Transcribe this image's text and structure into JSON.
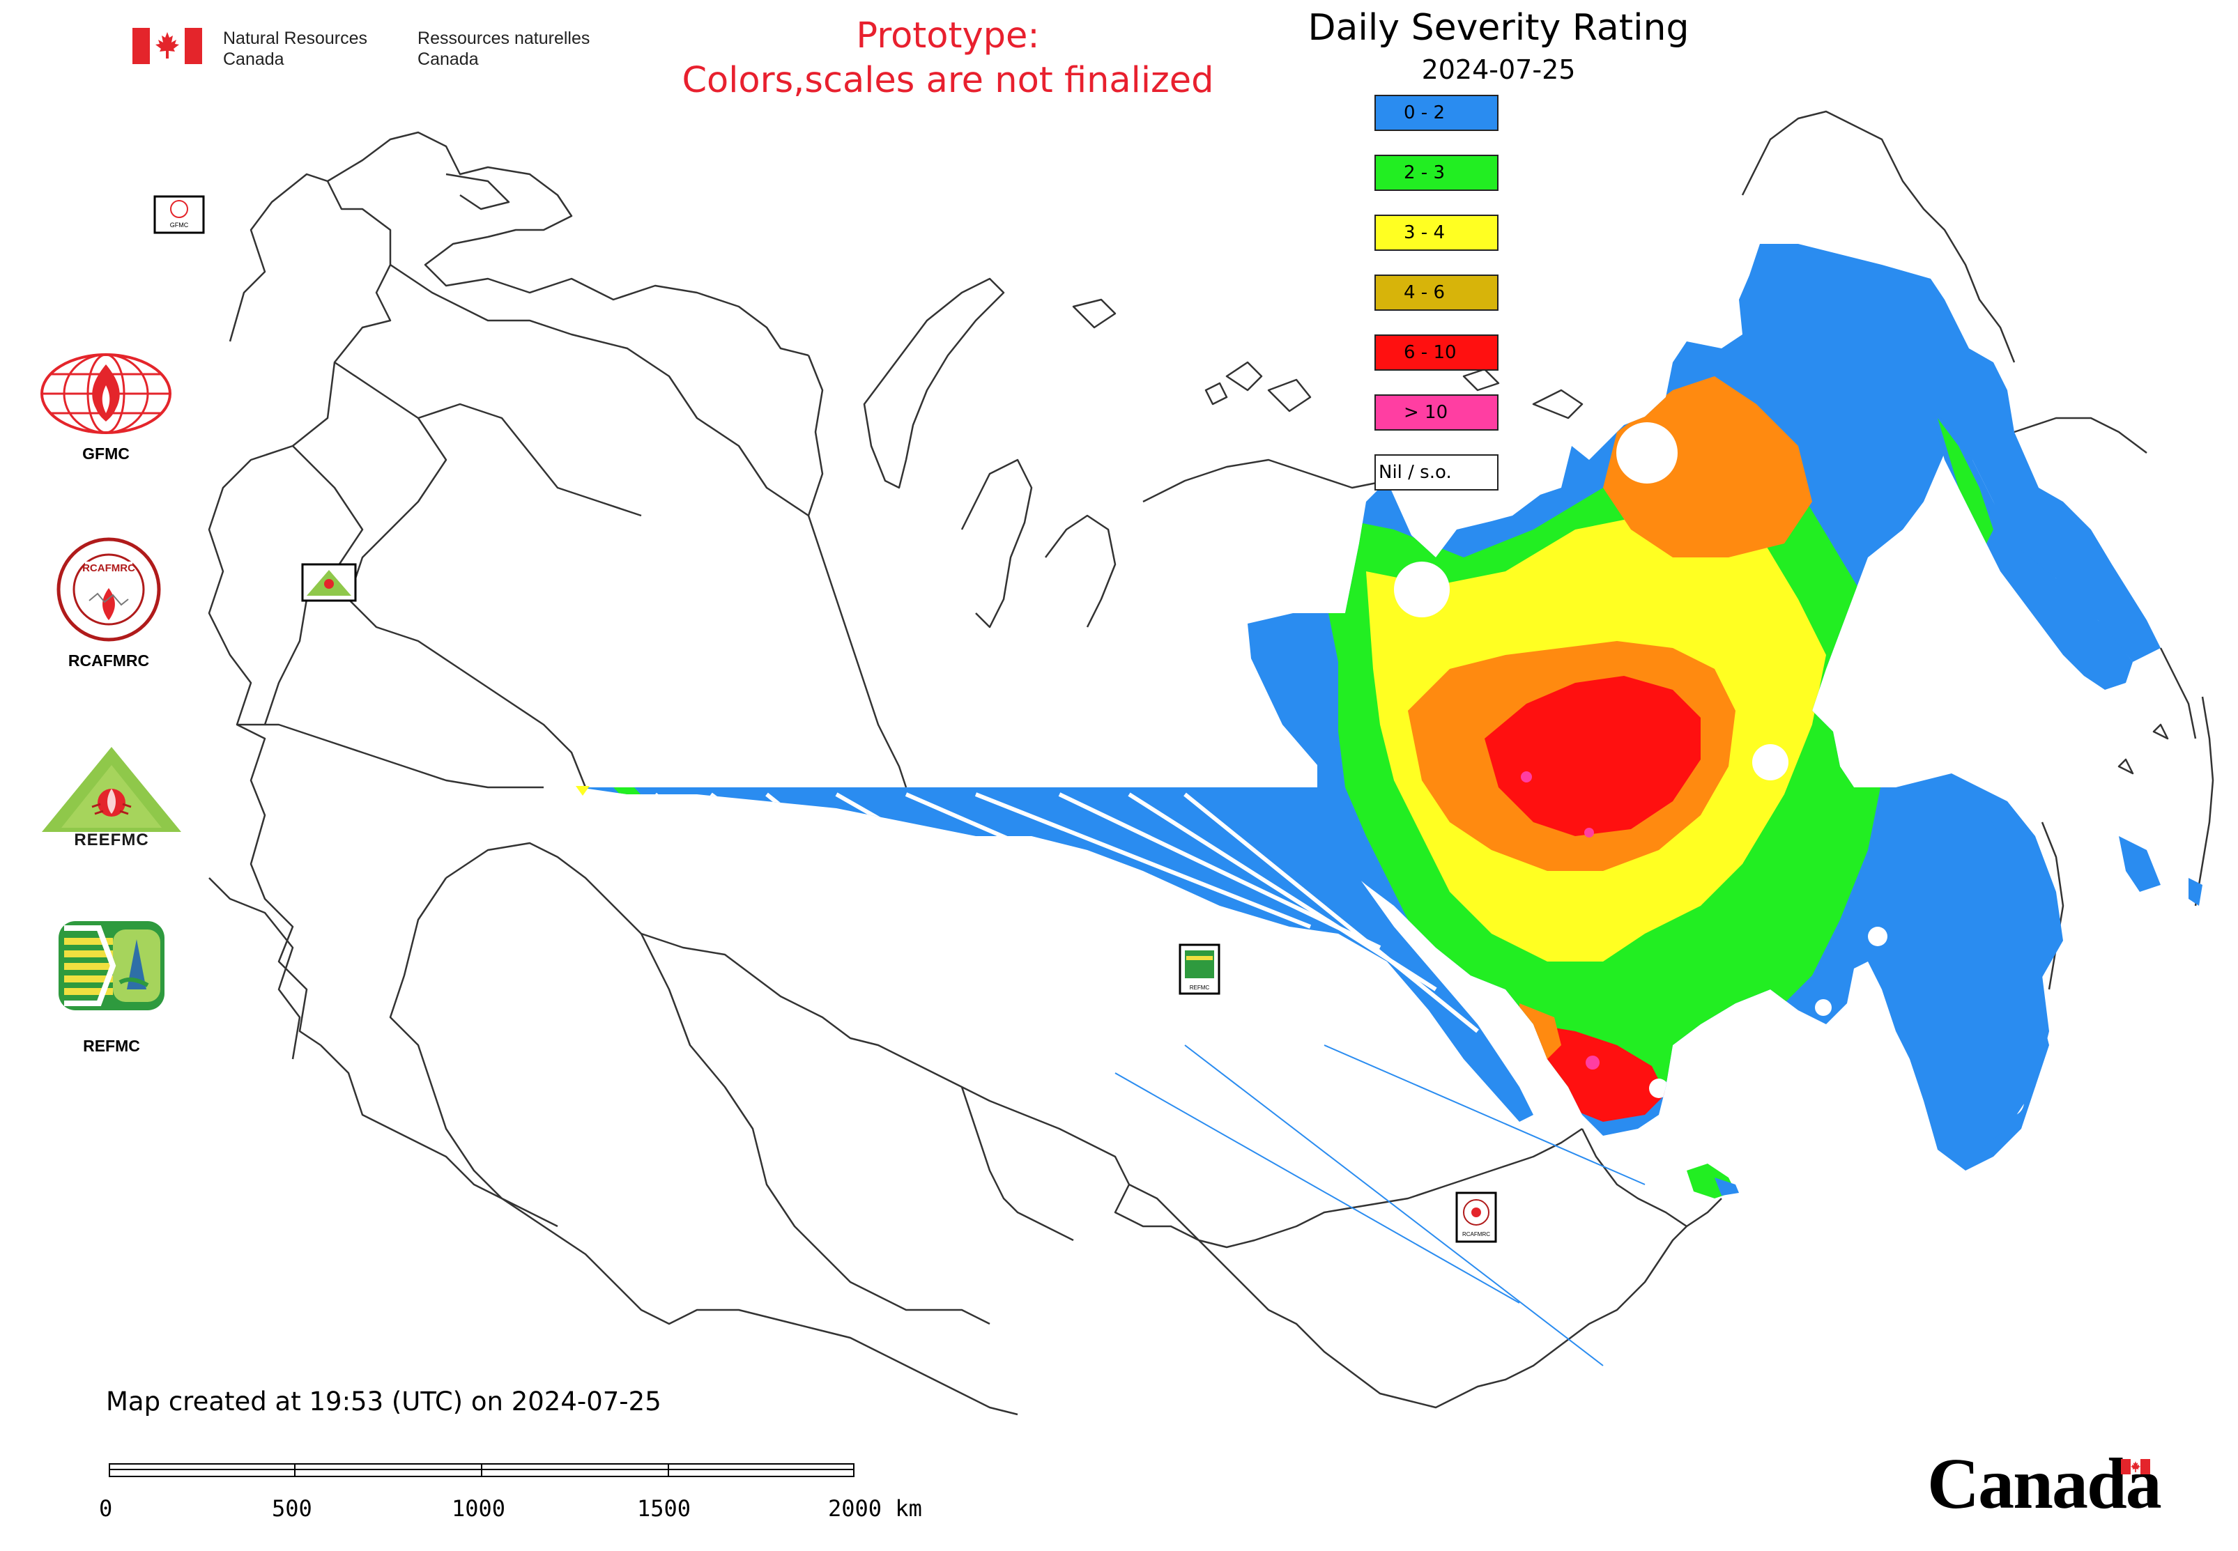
{
  "header": {
    "dept_en_line1": "Natural Resources",
    "dept_en_line2": "Canada",
    "dept_fr_line1": "Ressources naturelles",
    "dept_fr_line2": "Canada"
  },
  "notice": {
    "line1": "Prototype:",
    "line2": "Colors,scales are not finalized",
    "color": "#e8202e"
  },
  "legend": {
    "title": "Daily Severity Rating",
    "date": "2024-07-25",
    "items": [
      {
        "label": "0 - 2",
        "color": "#2a8cf0"
      },
      {
        "label": "2 - 3",
        "color": "#22ee22"
      },
      {
        "label": "3 - 4",
        "color": "#ffff22"
      },
      {
        "label": "4 - 6",
        "color": "#d7b40a"
      },
      {
        "label": "6 - 10",
        "color": "#ff1010"
      },
      {
        "label": "> 10",
        "color": "#ff3ea2"
      },
      {
        "label": "Nil / s.o.",
        "color": "#ffffff"
      }
    ]
  },
  "organizations": [
    {
      "name": "GFMC",
      "icon": "gfmc-logo"
    },
    {
      "name": "RCAFMRC",
      "icon": "rcafmrc-logo"
    },
    {
      "name": "REEFMC",
      "icon": "reefmc-logo"
    },
    {
      "name": "REFMC",
      "icon": "refmc-logo"
    }
  ],
  "logo_texts": {
    "rcafmrc_banner": "RCAFMRC",
    "reefmc_banner": "REEFMC",
    "gfmc_small": "GFMC",
    "refmc_small": "REFMC",
    "rcafmrc_small": "RCAFMRC"
  },
  "footer": {
    "created": "Map created at 19:53 (UTC) on 2024-07-25",
    "scale_labels": [
      "0",
      "500",
      "1000",
      "1500",
      "2000 km"
    ],
    "wordmark": "Canada"
  },
  "colors": {
    "fire_red": "#e4252b",
    "map_outline": "#333333"
  }
}
